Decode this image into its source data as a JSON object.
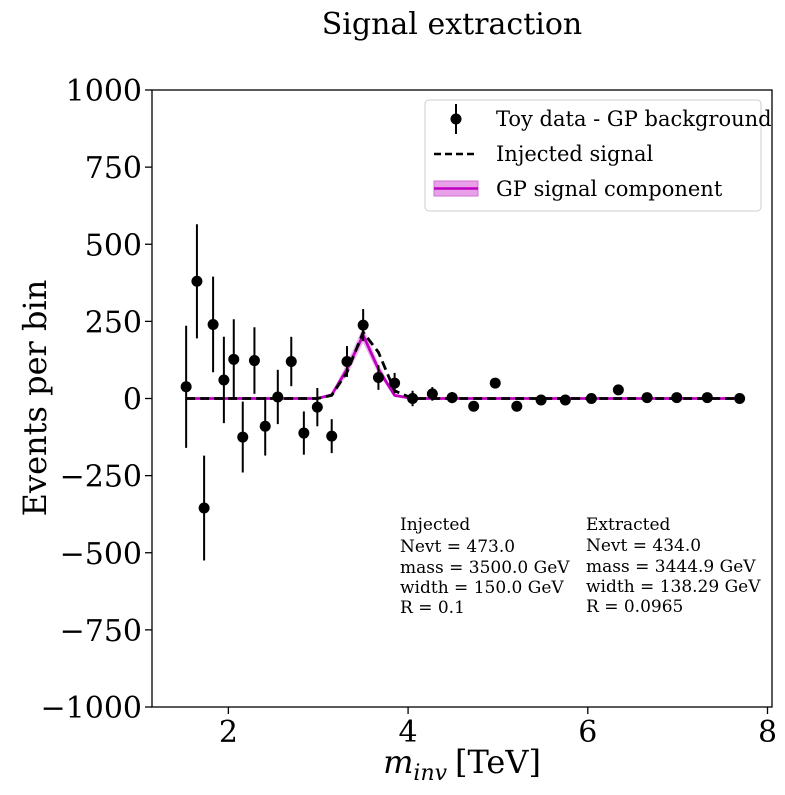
{
  "chart_data": {
    "type": "scatter",
    "title": "Signal extraction",
    "xlabel_main": "m",
    "xlabel_sub": "inv",
    "xlabel_unit": "[TeV]",
    "ylabel": "Events per bin",
    "xlim": [
      1.15,
      8.05
    ],
    "ylim": [
      -1000,
      1000
    ],
    "xticks": [
      2,
      4,
      6,
      8
    ],
    "yticks": [
      1000,
      750,
      500,
      250,
      0,
      -250,
      -500,
      -750,
      -1000
    ],
    "ytick_labels": [
      "1000",
      "750",
      "500",
      "250",
      "0",
      "−250",
      "−500",
      "−750",
      "−1000"
    ],
    "legend": {
      "position": "top-right",
      "entries": [
        {
          "label": "Toy data - GP background",
          "kind": "errorbar"
        },
        {
          "label": "Injected signal",
          "kind": "dashed"
        },
        {
          "label": "GP signal component",
          "kind": "band"
        }
      ]
    },
    "series": [
      {
        "name": "Toy data - GP background",
        "style": "errorbar",
        "color": "#000000",
        "points": [
          {
            "x": 1.53,
            "y": 38,
            "err": 198
          },
          {
            "x": 1.65,
            "y": 380,
            "err": 185
          },
          {
            "x": 1.73,
            "y": -355,
            "err": 170
          },
          {
            "x": 1.83,
            "y": 240,
            "err": 155
          },
          {
            "x": 1.95,
            "y": 60,
            "err": 140
          },
          {
            "x": 2.06,
            "y": 127,
            "err": 130
          },
          {
            "x": 2.16,
            "y": -125,
            "err": 115
          },
          {
            "x": 2.29,
            "y": 123,
            "err": 108
          },
          {
            "x": 2.41,
            "y": -90,
            "err": 95
          },
          {
            "x": 2.55,
            "y": 5,
            "err": 88
          },
          {
            "x": 2.7,
            "y": 120,
            "err": 80
          },
          {
            "x": 2.84,
            "y": -112,
            "err": 70
          },
          {
            "x": 2.99,
            "y": -28,
            "err": 62
          },
          {
            "x": 3.15,
            "y": -122,
            "err": 55
          },
          {
            "x": 3.32,
            "y": 120,
            "err": 50
          },
          {
            "x": 3.5,
            "y": 238,
            "err": 52
          },
          {
            "x": 3.67,
            "y": 68,
            "err": 40
          },
          {
            "x": 3.85,
            "y": 50,
            "err": 33
          },
          {
            "x": 4.05,
            "y": 0,
            "err": 25
          },
          {
            "x": 4.27,
            "y": 15,
            "err": 22
          },
          {
            "x": 4.49,
            "y": 3,
            "err": 18
          },
          {
            "x": 4.73,
            "y": -25,
            "err": 0
          },
          {
            "x": 4.97,
            "y": 50,
            "err": 0
          },
          {
            "x": 5.21,
            "y": -25,
            "err": 0
          },
          {
            "x": 5.48,
            "y": -5,
            "err": 0
          },
          {
            "x": 5.75,
            "y": -5,
            "err": 0
          },
          {
            "x": 6.04,
            "y": 0,
            "err": 0
          },
          {
            "x": 6.34,
            "y": 28,
            "err": 0
          },
          {
            "x": 6.66,
            "y": 3,
            "err": 0
          },
          {
            "x": 6.99,
            "y": 3,
            "err": 0
          },
          {
            "x": 7.33,
            "y": 3,
            "err": 0
          },
          {
            "x": 7.69,
            "y": 0,
            "err": 0
          }
        ]
      },
      {
        "name": "Injected signal",
        "style": "dashed",
        "color": "#000000",
        "x": [
          1.53,
          2.55,
          2.99,
          3.15,
          3.32,
          3.5,
          3.67,
          3.85,
          4.05,
          4.49,
          5.48,
          6.66,
          7.69
        ],
        "y": [
          0,
          0,
          0,
          10,
          85,
          215,
          150,
          25,
          0,
          0,
          0,
          0,
          0
        ]
      },
      {
        "name": "GP signal component",
        "style": "line-band",
        "color": "#c000c0",
        "band_color": "#e8a0e8",
        "x": [
          1.53,
          2.55,
          2.99,
          3.15,
          3.32,
          3.5,
          3.67,
          3.85,
          4.05,
          4.49,
          5.48,
          6.66,
          7.69
        ],
        "y": [
          0,
          0,
          0,
          12,
          95,
          205,
          95,
          10,
          0,
          0,
          0,
          0,
          0
        ],
        "lower": [
          0,
          0,
          0,
          6,
          75,
          180,
          78,
          5,
          0,
          0,
          0,
          0,
          0
        ],
        "upper": [
          0,
          0,
          0,
          18,
          115,
          232,
          112,
          15,
          0,
          0,
          0,
          0,
          0
        ]
      }
    ],
    "annotations": [
      {
        "lines": [
          "Injected",
          "Nevt = 473.0",
          "mass = 3500.0 GeV",
          "width = 150.0 GeV",
          "R = 0.1"
        ]
      },
      {
        "lines": [
          "Extracted",
          "Nevt = 434.0",
          "mass = 3444.9 GeV",
          "width = 138.29 GeV",
          "R = 0.0965"
        ]
      }
    ]
  }
}
